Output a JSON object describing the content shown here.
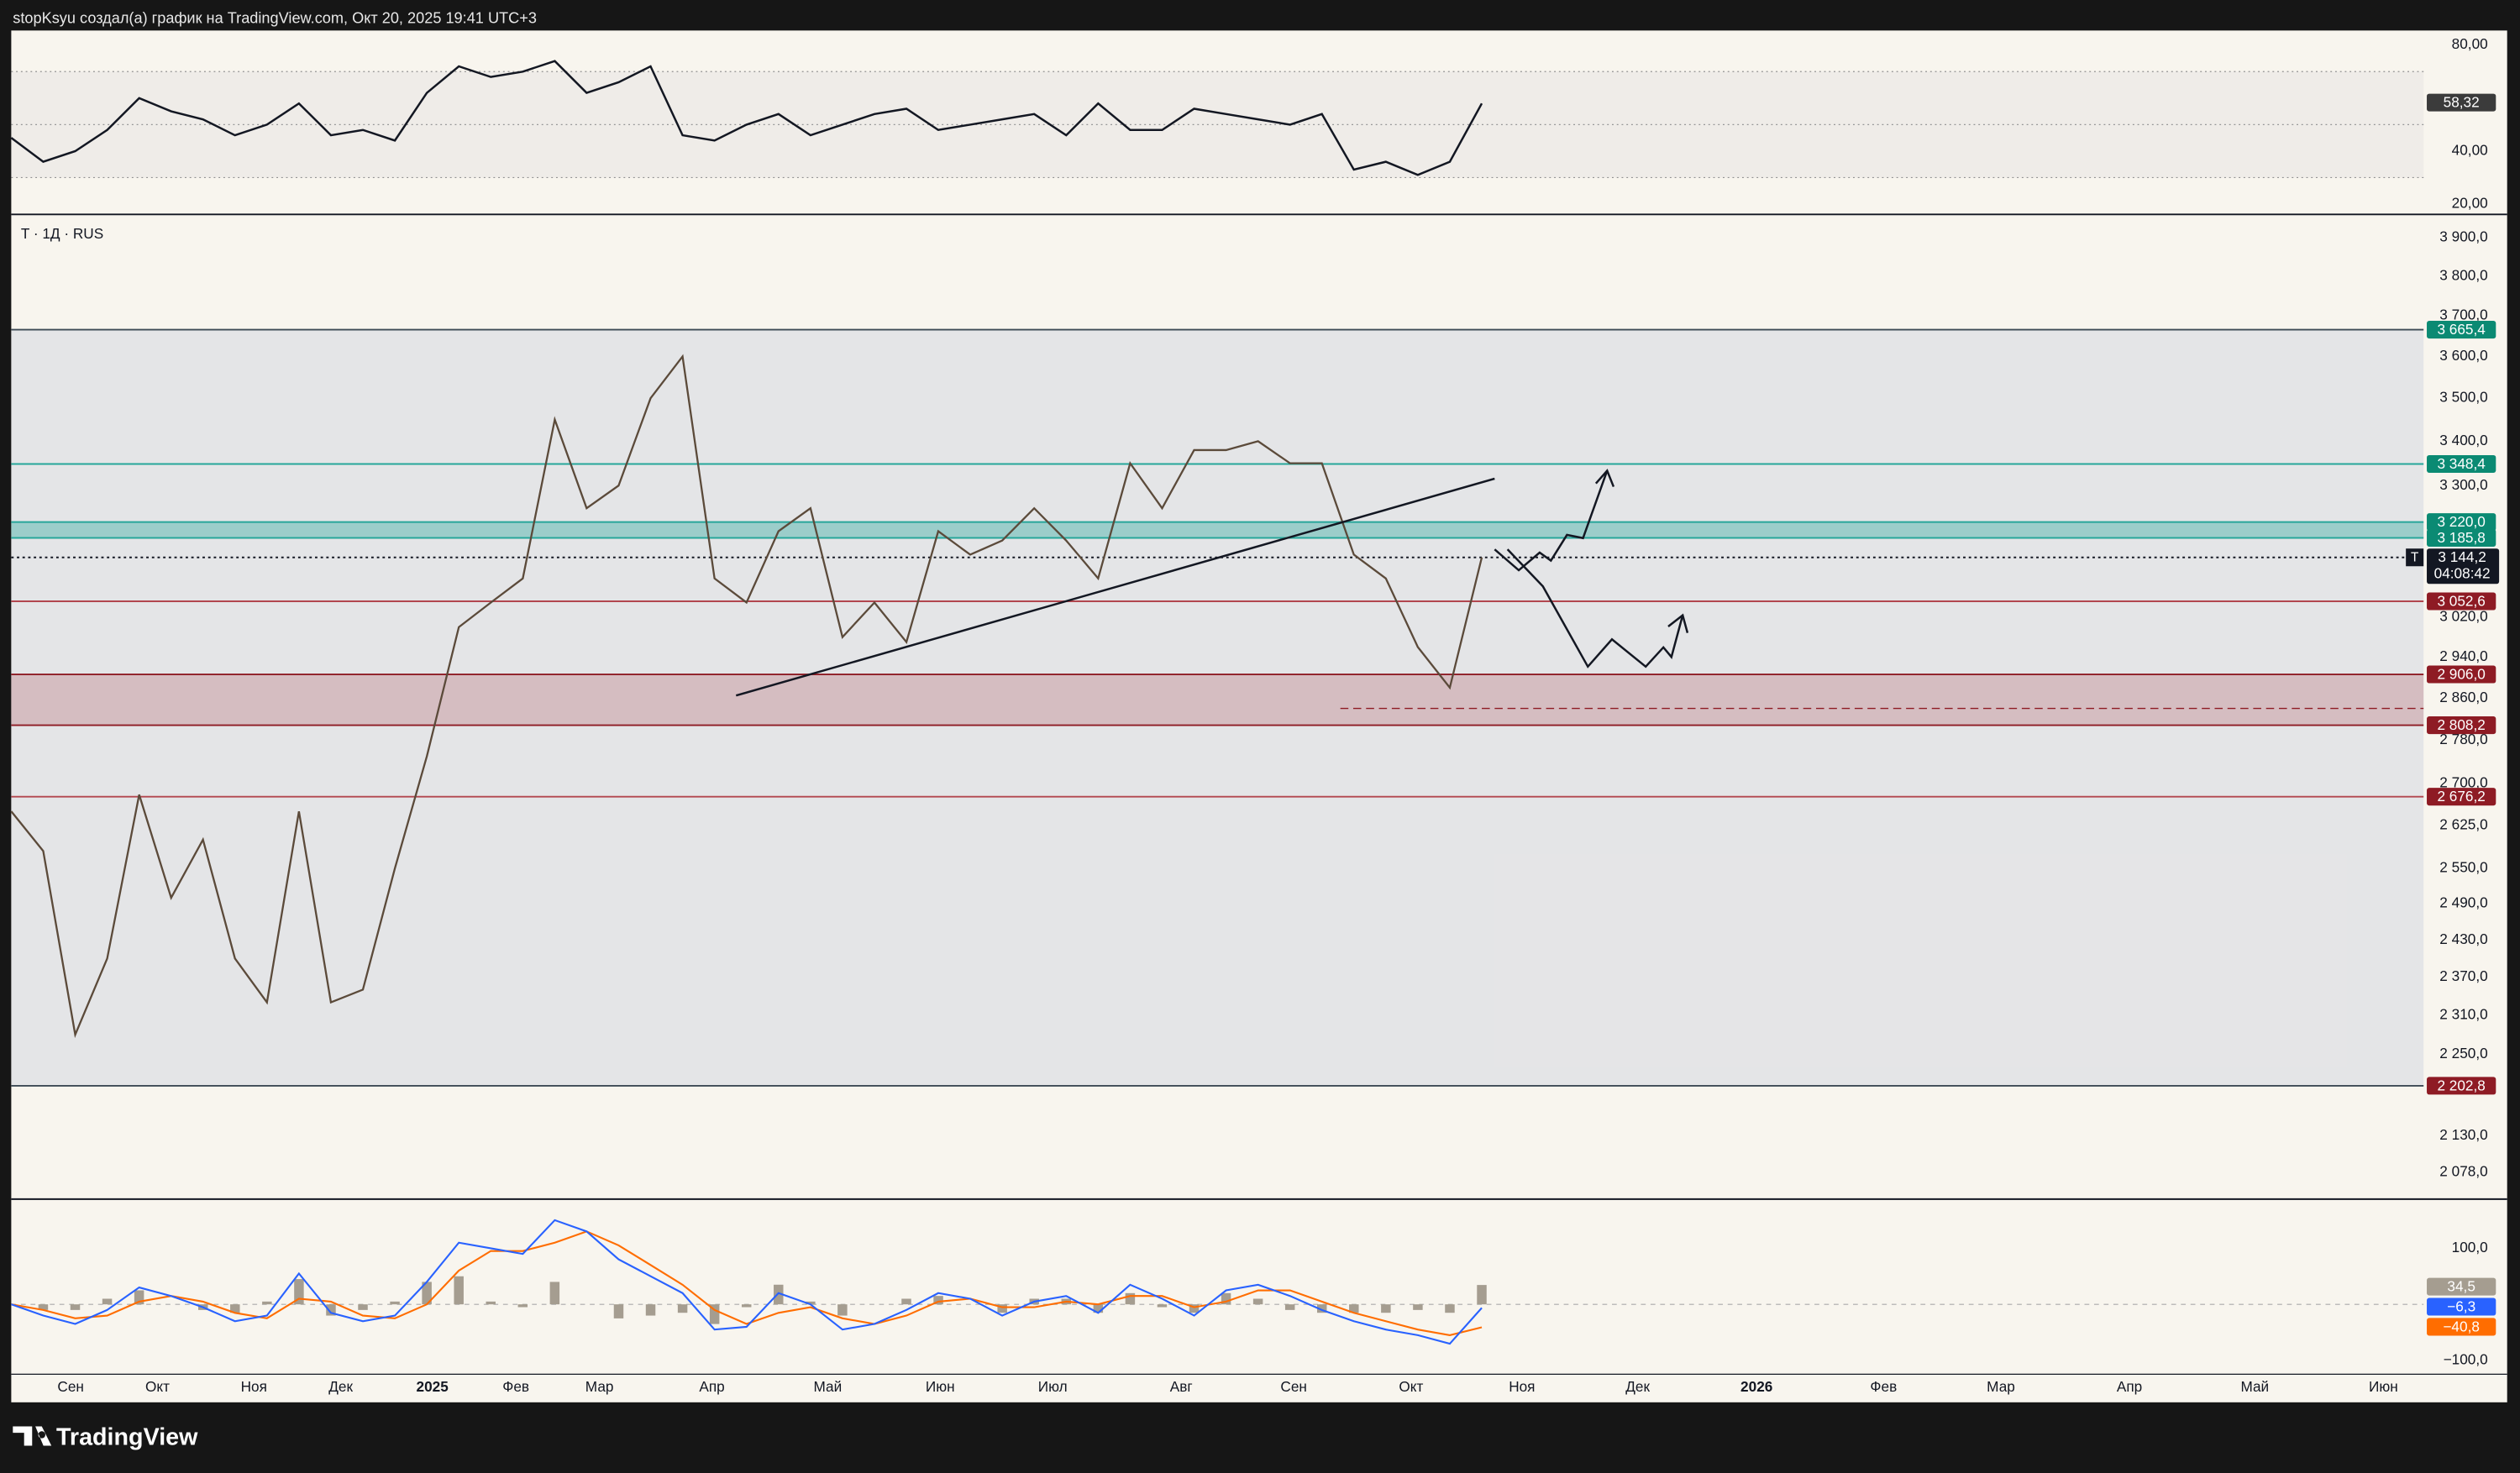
{
  "header": {
    "text": "stopKsyu создал(а) график на TradingView.com, Окт 20, 2025 19:41 UTC+3"
  },
  "symbol": "T · 1Д · RUS",
  "footer": {
    "brand": "TradingView"
  },
  "rsi": {
    "ylim": [
      16.4,
      85.5
    ],
    "yticks": [
      {
        "value": 80,
        "label": "80,00"
      },
      {
        "value": 40,
        "label": "40,00"
      },
      {
        "value": 20,
        "label": "20,00"
      }
    ],
    "bands": [
      70,
      50,
      30
    ],
    "color": "#131722",
    "values": [
      45,
      36,
      40,
      48,
      60,
      55,
      52,
      46,
      50,
      58,
      46,
      48,
      44,
      62,
      72,
      68,
      70,
      74,
      62,
      66,
      72,
      46,
      44,
      50,
      54,
      46,
      50,
      54,
      56,
      48,
      50,
      52,
      54,
      46,
      58,
      48,
      48,
      56,
      54,
      52,
      50,
      54,
      33,
      36,
      31,
      36,
      58
    ],
    "last": {
      "value": 58.32,
      "label": "58,32"
    }
  },
  "price": {
    "ylim": [
      2042,
      3959
    ],
    "log": true,
    "color": "#5b4a3a",
    "yticks": [
      {
        "value": 3900,
        "label": "3 900,0"
      },
      {
        "value": 3800,
        "label": "3 800,0"
      },
      {
        "value": 3700,
        "label": "3 700,0"
      },
      {
        "value": 3600,
        "label": "3 600,0"
      },
      {
        "value": 3500,
        "label": "3 500,0"
      },
      {
        "value": 3400,
        "label": "3 400,0"
      },
      {
        "value": 3300,
        "label": "3 300,0"
      },
      {
        "value": 3020,
        "label": "3 020,0"
      },
      {
        "value": 2940,
        "label": "2 940,0"
      },
      {
        "value": 2860,
        "label": "2 860,0"
      },
      {
        "value": 2780,
        "label": "2 780,0"
      },
      {
        "value": 2700,
        "label": "2 700,0"
      },
      {
        "value": 2625,
        "label": "2 625,0"
      },
      {
        "value": 2550,
        "label": "2 550,0"
      },
      {
        "value": 2490,
        "label": "2 490,0"
      },
      {
        "value": 2430,
        "label": "2 430,0"
      },
      {
        "value": 2370,
        "label": "2 370,0"
      },
      {
        "value": 2310,
        "label": "2 310,0"
      },
      {
        "value": 2250,
        "label": "2 250,0"
      },
      {
        "value": 2130,
        "label": "2 130,0"
      },
      {
        "value": 2078,
        "label": "2 078,0"
      }
    ],
    "values": [
      2650,
      2580,
      2280,
      2400,
      2680,
      2500,
      2600,
      2400,
      2330,
      2650,
      2330,
      2350,
      2550,
      2750,
      3000,
      3050,
      3100,
      3450,
      3250,
      3300,
      3500,
      3600,
      3100,
      3050,
      3200,
      3250,
      2980,
      3050,
      2970,
      3200,
      3150,
      3180,
      3250,
      3180,
      3100,
      3350,
      3250,
      3380,
      3380,
      3400,
      3350,
      3350,
      3150,
      3100,
      2960,
      2880,
      3144.2
    ],
    "range_fill": "rgba(205,210,222,0.45)",
    "levels": [
      {
        "value": 3665.4,
        "label": "3 665,4",
        "color": "#3d4a55",
        "label_color": "#0b8a73"
      },
      {
        "value": 3348.4,
        "label": "3 348,4",
        "color": "#26a69a",
        "label_color": "#0b8a73"
      },
      {
        "value": 3220,
        "label": "3 220,0",
        "color": "#26a69a",
        "label_color": "#0b8a73",
        "zone_fill": "rgba(38,166,154,0.38)"
      },
      {
        "value": 3185.8,
        "label": "3 185,8",
        "color": "#26a69a",
        "label_color": "#0b8a73"
      },
      {
        "value": 3052.6,
        "label": "3 052,6",
        "color": "#b2474f",
        "label_color": "#8e1b24"
      },
      {
        "value": 2906,
        "label": "2 906,0",
        "color": "#8e1b24",
        "label_color": "#8e1b24",
        "zone_fill": "rgba(160,50,60,0.22)"
      },
      {
        "value": 2808.2,
        "label": "2 808,2",
        "color": "#8e1b24",
        "label_color": "#8e1b24"
      },
      {
        "value": 2676.2,
        "label": "2 676,2",
        "color": "#b2474f",
        "label_color": "#8e1b24"
      },
      {
        "value": 2202.8,
        "label": "2 202,8",
        "color": "#3d4a55",
        "label_color": "#8e1b24"
      }
    ],
    "current": {
      "value": 3144.2,
      "label": "3 144,2",
      "countdown": "04:08:42",
      "marker": "T"
    }
  },
  "macd": {
    "ylim": [
      -123,
      186
    ],
    "yticks": [
      {
        "value": 100,
        "label": "100,0"
      },
      {
        "value": -100,
        "label": "−100,0"
      }
    ],
    "macd": {
      "color": "#2962ff",
      "values": [
        0,
        -20,
        -35,
        -10,
        30,
        15,
        -5,
        -30,
        -20,
        55,
        -15,
        -30,
        -20,
        40,
        110,
        100,
        90,
        150,
        130,
        80,
        50,
        20,
        -45,
        -40,
        20,
        0,
        -45,
        -35,
        -10,
        20,
        10,
        -20,
        5,
        15,
        -15,
        35,
        10,
        -20,
        25,
        35,
        15,
        -10,
        -30,
        -45,
        -55,
        -70,
        -6.3
      ]
    },
    "signal": {
      "color": "#ff6d00",
      "values": [
        0,
        -10,
        -25,
        -20,
        5,
        15,
        5,
        -15,
        -25,
        10,
        5,
        -20,
        -25,
        0,
        60,
        95,
        95,
        110,
        130,
        105,
        70,
        35,
        -10,
        -35,
        -15,
        -5,
        -25,
        -35,
        -20,
        5,
        10,
        -5,
        -5,
        5,
        0,
        15,
        15,
        -5,
        5,
        25,
        25,
        5,
        -15,
        -30,
        -45,
        -55,
        -40.8
      ]
    },
    "hist": {
      "color": "#a59d90",
      "values": [
        0,
        -10,
        -10,
        10,
        25,
        0,
        -10,
        -15,
        5,
        45,
        -20,
        -10,
        5,
        40,
        50,
        5,
        -5,
        40,
        0,
        -25,
        -20,
        -15,
        -35,
        -5,
        35,
        5,
        -20,
        0,
        10,
        15,
        0,
        -15,
        10,
        10,
        -15,
        20,
        -5,
        -15,
        20,
        10,
        -10,
        -15,
        -15,
        -15,
        -10,
        -15,
        34.5
      ]
    },
    "last": [
      {
        "value": 34.5,
        "label": "34,5",
        "color": "#a59d90"
      },
      {
        "value": -6.3,
        "label": "−6,3",
        "color": "#2962ff"
      },
      {
        "value": -40.8,
        "label": "−40,8",
        "color": "#ff6d00"
      }
    ]
  },
  "time_axis": [
    "Сен",
    "Окт",
    "Ноя",
    "Дек",
    "2025",
    "Фев",
    "Мар",
    "Апр",
    "Май",
    "Июн",
    "Июл",
    "Авг",
    "Сен",
    "Окт",
    "Ноя",
    "Дек",
    "2026",
    "Фев",
    "Мар",
    "Апр",
    "Май",
    "Июн"
  ]
}
